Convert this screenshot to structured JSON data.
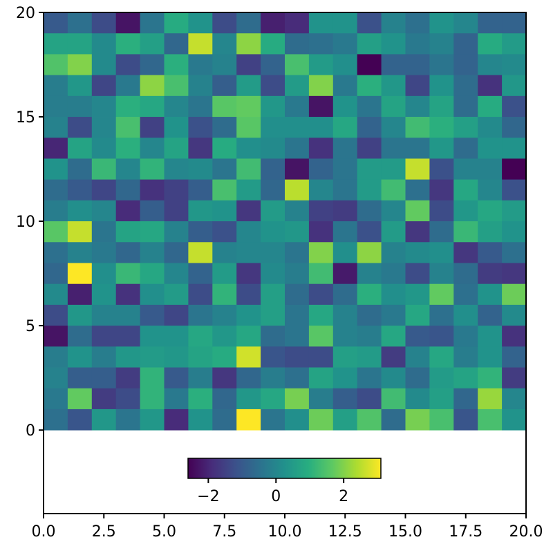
{
  "chart_data": {
    "type": "heatmap",
    "title": "",
    "xlabel": "",
    "ylabel": "",
    "xlim": [
      0,
      20
    ],
    "ylim": [
      -4,
      20
    ],
    "grid": false,
    "colormap": "viridis",
    "color_range": [
      -2.6,
      3.1
    ],
    "x_ticks": [
      0,
      2.5,
      5,
      7.5,
      10,
      12.5,
      15,
      17.5,
      20
    ],
    "x_tick_labels": [
      "0.0",
      "2.5",
      "5.0",
      "7.5",
      "10.0",
      "12.5",
      "15.0",
      "17.5",
      "20.0"
    ],
    "y_ticks": [
      0,
      5,
      10,
      15,
      20
    ],
    "y_tick_labels": [
      "0",
      "5",
      "10",
      "15",
      "20"
    ],
    "colorbar": {
      "orientation": "horizontal",
      "location": "inset lower center",
      "ticks": [
        -2,
        0,
        2
      ],
      "tick_labels": [
        "−2",
        "0",
        "2"
      ]
    },
    "grid_shape": [
      20,
      20
    ],
    "row_order": "top-to-bottom (row 0 is y=19..20)",
    "values": [
      [
        -1.0,
        -0.5,
        -1.3,
        -2.3,
        -0.4,
        0.9,
        0.3,
        -1.3,
        -0.6,
        -2.1,
        -1.9,
        0.3,
        0.3,
        -1.2,
        -0.1,
        -0.5,
        0.3,
        0.0,
        -0.8,
        -0.8
      ],
      [
        0.7,
        0.7,
        0.1,
        1.0,
        0.6,
        -0.7,
        2.6,
        0.0,
        2.1,
        0.9,
        -0.6,
        -0.5,
        -0.3,
        0.6,
        0.3,
        -0.3,
        -0.1,
        -0.8,
        0.9,
        0.5
      ],
      [
        1.5,
        2.0,
        0.1,
        -1.3,
        -0.7,
        1.0,
        -0.3,
        -0.1,
        -1.5,
        -0.8,
        1.4,
        0.5,
        0.2,
        -2.6,
        -0.8,
        -0.8,
        -0.4,
        -0.8,
        0.0,
        0.1
      ],
      [
        -0.2,
        0.4,
        -1.4,
        -0.3,
        2.1,
        1.4,
        -0.1,
        -0.9,
        0.5,
        -1.3,
        0.5,
        2.0,
        -0.3,
        1.0,
        0.4,
        -1.4,
        0.3,
        -0.6,
        -1.8,
        0.4
      ],
      [
        -0.2,
        -0.2,
        0.0,
        1.0,
        0.8,
        0.0,
        -0.4,
        1.6,
        1.7,
        0.4,
        -0.3,
        -2.3,
        0.3,
        -0.4,
        0.7,
        0.0,
        0.7,
        -0.6,
        0.9,
        -1.2
      ],
      [
        -0.1,
        -1.3,
        0.0,
        1.4,
        -1.5,
        0.3,
        -1.2,
        -0.6,
        1.6,
        0.2,
        0.2,
        0.2,
        0.8,
        -0.8,
        0.0,
        1.3,
        1.0,
        0.6,
        0.1,
        -0.7
      ],
      [
        -2.0,
        0.7,
        0.1,
        1.0,
        0.0,
        0.7,
        -1.7,
        0.9,
        0.2,
        0.1,
        -0.4,
        -1.8,
        -0.4,
        -1.5,
        -0.4,
        -0.4,
        0.4,
        -0.6,
        0.3,
        0.3
      ],
      [
        0.3,
        -0.6,
        1.2,
        0.0,
        1.1,
        0.0,
        0.1,
        -0.4,
        1.3,
        -0.8,
        -2.3,
        -0.8,
        -0.4,
        0.5,
        0.5,
        2.6,
        -1.2,
        -0.1,
        -0.1,
        -2.6
      ],
      [
        -0.6,
        -1.0,
        -1.4,
        -0.7,
        -1.8,
        -1.5,
        -0.9,
        1.4,
        0.5,
        -0.7,
        2.5,
        0.0,
        -0.4,
        0.5,
        1.3,
        -0.5,
        -1.7,
        0.8,
        0.0,
        -1.2
      ],
      [
        -0.2,
        0.2,
        0.0,
        -1.9,
        -0.9,
        -1.5,
        0.4,
        0.3,
        -1.7,
        0.5,
        -0.1,
        -1.5,
        -1.6,
        -0.6,
        0.0,
        1.7,
        -1.3,
        0.4,
        0.8,
        0.5
      ],
      [
        1.6,
        2.6,
        -0.4,
        0.7,
        0.8,
        -0.1,
        -0.9,
        -1.2,
        0.0,
        0.3,
        0.4,
        -1.8,
        -0.4,
        -1.2,
        0.5,
        -1.7,
        -0.6,
        1.2,
        0.6,
        0.3
      ],
      [
        -0.5,
        -0.1,
        -0.3,
        -0.7,
        -0.1,
        -0.7,
        2.6,
        -0.1,
        0.0,
        0.0,
        -0.4,
        2.0,
        0.2,
        2.1,
        -0.1,
        0.1,
        0.2,
        -1.7,
        -1.0,
        -0.5
      ],
      [
        -0.7,
        3.1,
        0.2,
        1.2,
        0.8,
        0.0,
        -0.8,
        0.5,
        -1.7,
        0.1,
        -0.2,
        1.3,
        -2.2,
        -0.1,
        -0.3,
        -1.3,
        -0.1,
        -0.6,
        -1.6,
        -1.7
      ],
      [
        0.1,
        -2.1,
        0.3,
        -1.8,
        0.2,
        0.5,
        -1.3,
        1.1,
        -1.3,
        0.6,
        -0.6,
        -1.3,
        -0.6,
        1.0,
        0.2,
        0.4,
        1.7,
        -0.5,
        0.3,
        1.8
      ],
      [
        -1.3,
        0.4,
        -0.1,
        -0.1,
        -1.0,
        -1.4,
        -0.4,
        -0.1,
        0.3,
        0.6,
        -0.4,
        0.8,
        -0.1,
        -0.6,
        -0.3,
        0.8,
        -0.5,
        0.2,
        -0.8,
        0.1
      ],
      [
        -2.3,
        -0.6,
        -1.4,
        -1.4,
        0.3,
        0.3,
        0.8,
        0.4,
        0.8,
        -0.6,
        -0.4,
        1.6,
        -0.1,
        -0.2,
        0.8,
        -1.0,
        -1.1,
        -0.3,
        0.3,
        -1.8
      ],
      [
        -0.2,
        0.3,
        -0.2,
        0.4,
        0.5,
        0.4,
        0.7,
        0.9,
        2.7,
        -1.1,
        -1.3,
        -1.3,
        0.6,
        0.5,
        -1.6,
        -0.1,
        0.8,
        -0.2,
        0.3,
        -0.8
      ],
      [
        -0.1,
        -0.9,
        -0.9,
        -1.6,
        1.1,
        -1.0,
        -0.2,
        -1.7,
        -0.7,
        -0.2,
        -0.5,
        0.7,
        0.3,
        -0.4,
        0.1,
        -0.6,
        0.5,
        0.7,
        1.1,
        -1.6
      ],
      [
        -0.3,
        1.7,
        -1.6,
        -1.3,
        1.1,
        -0.3,
        1.0,
        -0.7,
        0.4,
        0.8,
        1.9,
        -0.2,
        -0.9,
        -1.3,
        1.3,
        0.1,
        0.6,
        -0.7,
        2.2,
        0.0
      ],
      [
        -0.5,
        -1.1,
        0.4,
        -0.4,
        0.4,
        -1.9,
        0.3,
        -0.6,
        3.1,
        -0.4,
        0.2,
        1.8,
        0.6,
        1.5,
        -0.6,
        1.9,
        1.4,
        -1.1,
        1.4,
        0.3
      ]
    ]
  }
}
